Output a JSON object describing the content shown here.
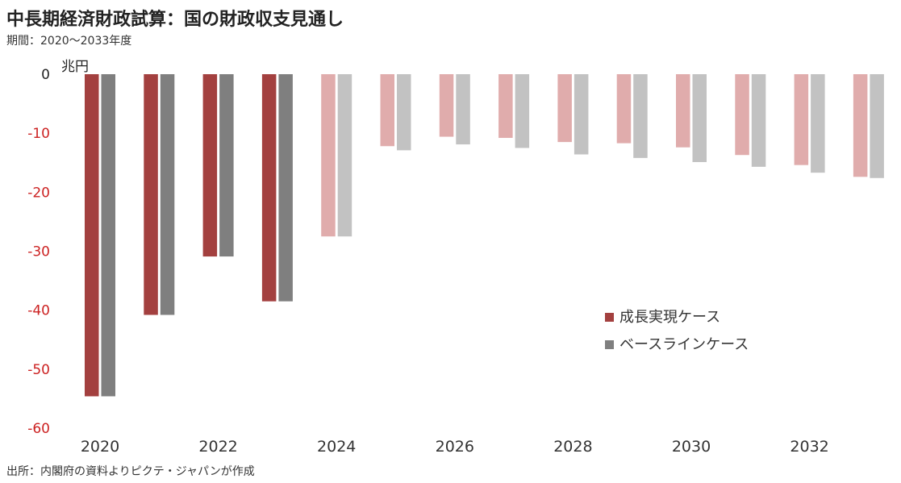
{
  "header": {
    "title": "中長期経済財政試算：国の財政収支見通し",
    "subtitle": "期間：2020～2033年度"
  },
  "footer": {
    "source": "出所：内閣府の資料よりピクテ・ジャパンが作成"
  },
  "chart_data": {
    "type": "bar",
    "unit_label": "兆円",
    "categories": [
      "2020",
      "2021",
      "2022",
      "2023",
      "2024",
      "2025",
      "2026",
      "2027",
      "2028",
      "2029",
      "2030",
      "2031",
      "2032",
      "2033"
    ],
    "x_tick_labels": [
      "2020",
      "2022",
      "2024",
      "2026",
      "2028",
      "2030",
      "2032"
    ],
    "ylim": [
      -60,
      0
    ],
    "y_ticks": [
      0,
      -10,
      -20,
      -30,
      -40,
      -50,
      -60
    ],
    "actual_through": "2023",
    "series": [
      {
        "name": "成長実現ケース",
        "color": "#a3403f",
        "projection_color": "#e0acac",
        "values": [
          -54.6,
          -40.8,
          -30.9,
          -38.5,
          -27.5,
          -12.2,
          -10.6,
          -10.8,
          -11.5,
          -11.7,
          -12.4,
          -13.7,
          -15.4,
          -17.4
        ]
      },
      {
        "name": "ベースラインケース",
        "color": "#7f7f7f",
        "projection_color": "#c2c2c2",
        "values": [
          -54.6,
          -40.8,
          -30.9,
          -38.5,
          -27.5,
          -12.9,
          -11.9,
          -12.5,
          -13.6,
          -14.2,
          -14.9,
          -15.7,
          -16.7,
          -17.6
        ]
      }
    ],
    "colors": {
      "negative_tick": "#cc2222",
      "zero_tick": "#222222"
    },
    "legend_position": "right"
  }
}
